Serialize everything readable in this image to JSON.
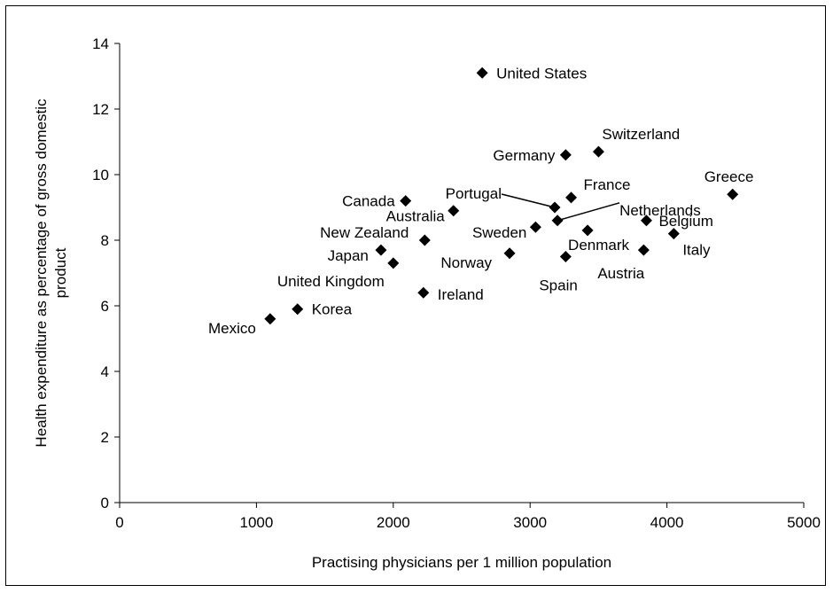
{
  "chart_data": {
    "type": "scatter",
    "title": "",
    "xlabel": "Practising physicians per 1 million population",
    "ylabel_lines": [
      "Health expenditure as percentage of gross domestic",
      "product"
    ],
    "xlim": [
      0,
      5000
    ],
    "ylim": [
      0,
      14
    ],
    "xticks": [
      0,
      1000,
      2000,
      3000,
      4000,
      5000
    ],
    "yticks": [
      0,
      2,
      4,
      6,
      8,
      10,
      12,
      14
    ],
    "grid": false,
    "legend": "none",
    "marker": "diamond",
    "marker_color": "#000000",
    "points": [
      {
        "label": "United States",
        "x": 2650,
        "y": 13.1
      },
      {
        "label": "Switzerland",
        "x": 3500,
        "y": 10.7
      },
      {
        "label": "Germany",
        "x": 3260,
        "y": 10.6
      },
      {
        "label": "Greece",
        "x": 4480,
        "y": 9.4
      },
      {
        "label": "France",
        "x": 3300,
        "y": 9.3
      },
      {
        "label": "Canada",
        "x": 2090,
        "y": 9.2
      },
      {
        "label": "Portugal",
        "x": 3180,
        "y": 9.0
      },
      {
        "label": "Australia",
        "x": 2440,
        "y": 8.9
      },
      {
        "label": "Netherlands",
        "x": 3200,
        "y": 8.6
      },
      {
        "label": "Belgium",
        "x": 3850,
        "y": 8.6
      },
      {
        "label": "Sweden",
        "x": 3040,
        "y": 8.4
      },
      {
        "label": "Denmark",
        "x": 3420,
        "y": 8.3
      },
      {
        "label": "Italy",
        "x": 4050,
        "y": 8.2
      },
      {
        "label": "New Zealand",
        "x": 2230,
        "y": 8.0
      },
      {
        "label": "Japan",
        "x": 1910,
        "y": 7.7
      },
      {
        "label": "Austria",
        "x": 3830,
        "y": 7.7
      },
      {
        "label": "Norway",
        "x": 2850,
        "y": 7.6
      },
      {
        "label": "Spain",
        "x": 3260,
        "y": 7.5
      },
      {
        "label": "United Kingdom",
        "x": 2000,
        "y": 7.3
      },
      {
        "label": "Ireland",
        "x": 2220,
        "y": 6.4
      },
      {
        "label": "Korea",
        "x": 1300,
        "y": 5.9
      },
      {
        "label": "Mexico",
        "x": 1100,
        "y": 5.6
      }
    ]
  }
}
